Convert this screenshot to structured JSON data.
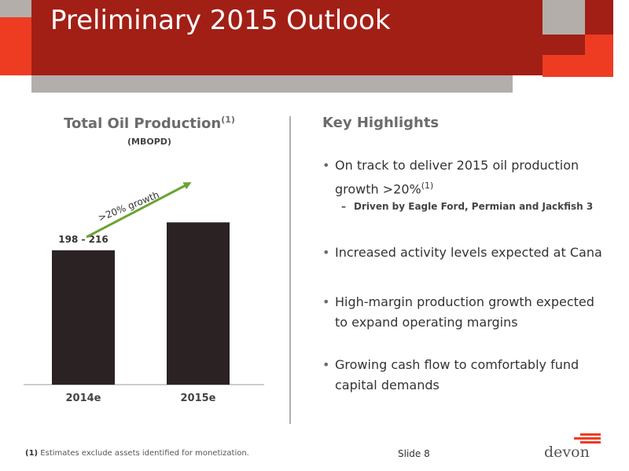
{
  "slide": {
    "title": "Preliminary 2015 Outlook",
    "slide_number": "Slide 8"
  },
  "chart_data": {
    "type": "bar",
    "title": "Total Oil Production",
    "title_superscript": "(1)",
    "subtitle": "(MBOPD)",
    "categories": [
      "2014e",
      "2015e"
    ],
    "values": [
      207,
      250
    ],
    "data_labels": [
      "198 - 216",
      ""
    ],
    "annotation": ">20% growth",
    "ylim": [
      0,
      260
    ],
    "grid": false,
    "colors": {
      "bar": "#2b2224",
      "arrow": "#6aa332"
    }
  },
  "highlights": {
    "title": "Key Highlights",
    "bullets": [
      {
        "text": "On track to deliver 2015 oil production growth >20%",
        "sup": "(1)"
      },
      {
        "text": "Increased activity levels expected at Cana",
        "sup": ""
      },
      {
        "text": "High-margin production growth expected to expand operating margins",
        "sup": ""
      },
      {
        "text": "Growing cash flow to comfortably fund capital demands",
        "sup": ""
      }
    ],
    "sub_bullet": "Driven by Eagle Ford, Permian and Jackfish 3"
  },
  "footnote": {
    "marker": "(1)",
    "text": "Estimates exclude assets identified for monetization."
  },
  "logo": {
    "text": "devon"
  },
  "colors": {
    "banner": "#a21f16",
    "accent": "#ee3c23",
    "gray": "#b3aeaa"
  }
}
